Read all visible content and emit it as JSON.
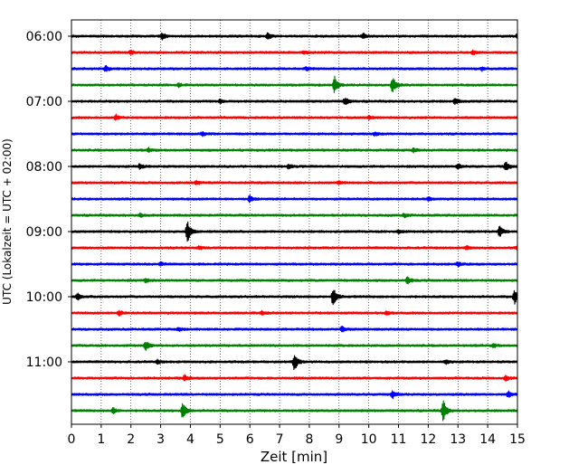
{
  "chart_data": {
    "type": "line",
    "title": "",
    "xlabel": "Zeit  [min]",
    "ylabel": "UTC (Lokalzeit = UTC + 02:00)",
    "xlim": [
      0,
      15
    ],
    "x_ticks": [
      "0",
      "1",
      "2",
      "3",
      "4",
      "5",
      "6",
      "7",
      "8",
      "9",
      "10",
      "11",
      "12",
      "13",
      "14",
      "15"
    ],
    "grid": {
      "x": "dotted vertical lines at each minute",
      "y": "none"
    },
    "y_tick_labels": [
      "06:00",
      "07:00",
      "08:00",
      "09:00",
      "10:00",
      "11:00"
    ],
    "trace_interval_minutes": 15,
    "trace_start": "06:00",
    "color_cycle": [
      "#000000",
      "#ff0000",
      "#0000ff",
      "#008000"
    ],
    "traces": [
      {
        "start": "06:00",
        "color": "#000000",
        "events": [
          {
            "t": 3.05,
            "amp": 4
          },
          {
            "t": 6.6,
            "amp": 4
          },
          {
            "t": 9.8,
            "amp": 3
          },
          {
            "t": 15,
            "amp": 3
          }
        ]
      },
      {
        "start": "06:15",
        "color": "#ff0000",
        "events": [
          {
            "t": 2.0,
            "amp": 2
          },
          {
            "t": 7.8,
            "amp": 2
          },
          {
            "t": 13.5,
            "amp": 2
          }
        ]
      },
      {
        "start": "06:30",
        "color": "#0000ff",
        "events": [
          {
            "t": 1.15,
            "amp": 3
          },
          {
            "t": 7.9,
            "amp": 2
          },
          {
            "t": 13.8,
            "amp": 2
          }
        ]
      },
      {
        "start": "06:45",
        "color": "#008000",
        "events": [
          {
            "t": 8.85,
            "amp": 10
          },
          {
            "t": 10.8,
            "amp": 9
          },
          {
            "t": 3.6,
            "amp": 2
          }
        ]
      },
      {
        "start": "07:00",
        "color": "#000000",
        "events": [
          {
            "t": 9.2,
            "amp": 4
          },
          {
            "t": 12.9,
            "amp": 3
          },
          {
            "t": 5.0,
            "amp": 2
          }
        ]
      },
      {
        "start": "07:15",
        "color": "#ff0000",
        "events": [
          {
            "t": 1.5,
            "amp": 3
          },
          {
            "t": 10.0,
            "amp": 2
          }
        ]
      },
      {
        "start": "07:30",
        "color": "#0000ff",
        "events": [
          {
            "t": 4.4,
            "amp": 2
          },
          {
            "t": 10.2,
            "amp": 2
          }
        ]
      },
      {
        "start": "07:45",
        "color": "#008000",
        "events": [
          {
            "t": 2.6,
            "amp": 2
          },
          {
            "t": 11.5,
            "amp": 2
          }
        ]
      },
      {
        "start": "08:00",
        "color": "#000000",
        "events": [
          {
            "t": 2.3,
            "amp": 3
          },
          {
            "t": 7.3,
            "amp": 2
          },
          {
            "t": 13.0,
            "amp": 3
          },
          {
            "t": 14.6,
            "amp": 6
          }
        ]
      },
      {
        "start": "08:15",
        "color": "#ff0000",
        "events": [
          {
            "t": 4.2,
            "amp": 2
          },
          {
            "t": 9.0,
            "amp": 2
          }
        ]
      },
      {
        "start": "08:30",
        "color": "#0000ff",
        "events": [
          {
            "t": 6.0,
            "amp": 4
          },
          {
            "t": 12.0,
            "amp": 2
          }
        ]
      },
      {
        "start": "08:45",
        "color": "#008000",
        "events": [
          {
            "t": 2.3,
            "amp": 2
          },
          {
            "t": 11.2,
            "amp": 2
          }
        ]
      },
      {
        "start": "09:00",
        "color": "#000000",
        "events": [
          {
            "t": 3.9,
            "amp": 12
          },
          {
            "t": 14.4,
            "amp": 6
          },
          {
            "t": 11.0,
            "amp": 2
          }
        ]
      },
      {
        "start": "09:15",
        "color": "#ff0000",
        "events": [
          {
            "t": 4.3,
            "amp": 2
          },
          {
            "t": 13.3,
            "amp": 2
          },
          {
            "t": 15,
            "amp": 3
          }
        ]
      },
      {
        "start": "09:30",
        "color": "#0000ff",
        "events": [
          {
            "t": 3.0,
            "amp": 2
          },
          {
            "t": 13.0,
            "amp": 2
          }
        ]
      },
      {
        "start": "09:45",
        "color": "#008000",
        "events": [
          {
            "t": 2.5,
            "amp": 2
          },
          {
            "t": 11.3,
            "amp": 4
          }
        ]
      },
      {
        "start": "10:00",
        "color": "#000000",
        "events": [
          {
            "t": 0.2,
            "amp": 4
          },
          {
            "t": 8.8,
            "amp": 11
          },
          {
            "t": 14.9,
            "amp": 8
          }
        ]
      },
      {
        "start": "10:15",
        "color": "#ff0000",
        "events": [
          {
            "t": 1.6,
            "amp": 3
          },
          {
            "t": 6.4,
            "amp": 2
          },
          {
            "t": 10.6,
            "amp": 2
          }
        ]
      },
      {
        "start": "10:30",
        "color": "#0000ff",
        "events": [
          {
            "t": 9.1,
            "amp": 3
          },
          {
            "t": 3.6,
            "amp": 2
          }
        ]
      },
      {
        "start": "10:45",
        "color": "#008000",
        "events": [
          {
            "t": 2.5,
            "amp": 5
          },
          {
            "t": 14.2,
            "amp": 2
          }
        ]
      },
      {
        "start": "11:00",
        "color": "#000000",
        "events": [
          {
            "t": 7.5,
            "amp": 10
          },
          {
            "t": 2.9,
            "amp": 2
          },
          {
            "t": 12.6,
            "amp": 2
          }
        ]
      },
      {
        "start": "11:15",
        "color": "#ff0000",
        "events": [
          {
            "t": 3.8,
            "amp": 3
          },
          {
            "t": 14.6,
            "amp": 3
          }
        ]
      },
      {
        "start": "11:30",
        "color": "#0000ff",
        "events": [
          {
            "t": 10.8,
            "amp": 4
          },
          {
            "t": 14.7,
            "amp": 3
          }
        ]
      },
      {
        "start": "11:45",
        "color": "#008000",
        "events": [
          {
            "t": 1.4,
            "amp": 3
          },
          {
            "t": 3.75,
            "amp": 11
          },
          {
            "t": 12.5,
            "amp": 13
          }
        ]
      }
    ]
  }
}
